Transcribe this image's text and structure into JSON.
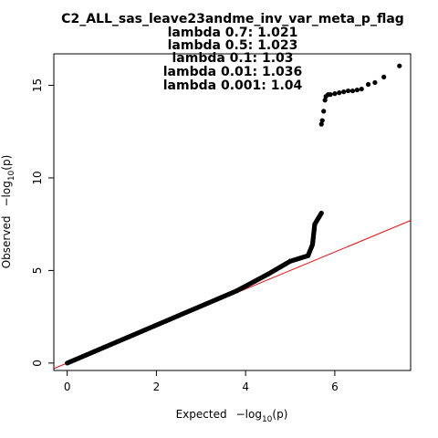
{
  "chart_data": {
    "type": "scatter",
    "title": "C2_ALL_sas_leave23andme_inv_var_meta_p_flag",
    "lambda_lines": [
      "lambda 0.7: 1.021",
      "lambda 0.5: 1.023",
      "lambda 0.1: 1.03",
      "lambda 0.01: 1.036",
      "lambda 0.001: 1.04"
    ],
    "xlabel": {
      "prefix": "Expected",
      "expr": "−log",
      "sub": "10",
      "arg": "(p)"
    },
    "ylabel": {
      "prefix": "Observed",
      "expr": "−log",
      "sub": "10",
      "arg": "(p)"
    },
    "xlim": [
      -0.3,
      7.7
    ],
    "ylim": [
      -0.4,
      16.7
    ],
    "xticks": [
      0,
      2,
      4,
      6
    ],
    "yticks": [
      0,
      5,
      10,
      15
    ],
    "xtick_labels": [
      "0",
      "2",
      "4",
      "6"
    ],
    "ytick_labels": [
      "0",
      "5",
      "10",
      "15"
    ],
    "reference_line": {
      "slope": 1,
      "intercept": 0,
      "color": "#ff0000"
    },
    "point_color": "#000000",
    "dense_segments": [
      {
        "x0": 0.0,
        "y0": 0.0,
        "x1": 3.8,
        "y1": 3.9
      },
      {
        "x0": 3.8,
        "y0": 3.9,
        "x1": 4.5,
        "y1": 4.8
      },
      {
        "x0": 4.5,
        "y0": 4.8,
        "x1": 5.0,
        "y1": 5.5
      },
      {
        "x0": 5.0,
        "y0": 5.5,
        "x1": 5.4,
        "y1": 5.8
      },
      {
        "x0": 5.4,
        "y0": 5.8,
        "x1": 5.5,
        "y1": 6.4
      },
      {
        "x0": 5.5,
        "y0": 6.4,
        "x1": 5.55,
        "y1": 7.5
      },
      {
        "x0": 5.55,
        "y0": 7.5,
        "x1": 5.7,
        "y1": 8.1
      }
    ],
    "points": [
      [
        5.7,
        12.9
      ],
      [
        5.72,
        13.1
      ],
      [
        5.75,
        13.6
      ],
      [
        5.78,
        14.2
      ],
      [
        5.8,
        14.4
      ],
      [
        5.85,
        14.5
      ],
      [
        5.9,
        14.5
      ],
      [
        6.0,
        14.55
      ],
      [
        6.1,
        14.6
      ],
      [
        6.2,
        14.65
      ],
      [
        6.3,
        14.7
      ],
      [
        6.4,
        14.7
      ],
      [
        6.5,
        14.75
      ],
      [
        6.6,
        14.8
      ],
      [
        6.75,
        15.05
      ],
      [
        6.9,
        15.15
      ],
      [
        7.1,
        15.45
      ],
      [
        7.45,
        16.05
      ]
    ]
  }
}
